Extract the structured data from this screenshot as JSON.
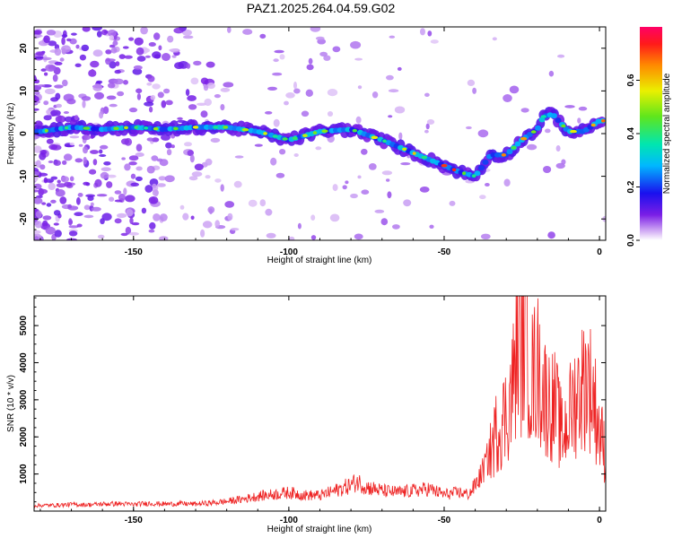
{
  "title": "PAZ1.2025.264.04.59.G02",
  "chart_data": [
    {
      "type": "heatmap",
      "name": "spectrogram",
      "xlabel": "Height of straight line (km)",
      "ylabel": "Frequency (Hz)",
      "xlim": [
        -182,
        2
      ],
      "ylim": [
        -25,
        25
      ],
      "xticks": [
        -150,
        -100,
        -50,
        0
      ],
      "xtick_labels": [
        "-150",
        "-100",
        "-50",
        "0"
      ],
      "yticks": [
        20,
        10,
        0,
        -10,
        -20
      ],
      "ytick_labels": [
        "20",
        "10",
        "0",
        "-10",
        "-20"
      ],
      "colorbar": {
        "label": "Normalized spectral amplitude",
        "range": [
          0,
          0.8
        ],
        "ticks": [
          0.0,
          0.2,
          0.4,
          0.6
        ],
        "tick_labels": [
          "0.0",
          "0.2",
          "0.4",
          "0.6"
        ]
      },
      "ridge": {
        "x": [
          -180,
          -170,
          -160,
          -150,
          -140,
          -130,
          -120,
          -110,
          -100,
          -90,
          -80,
          -70,
          -60,
          -50,
          -45,
          -40,
          -35,
          -30,
          -25,
          -20,
          -18,
          -15,
          -10,
          -5,
          0
        ],
        "y": [
          0.5,
          1.5,
          1.0,
          1.5,
          1.0,
          1.5,
          1.5,
          0.5,
          -1.5,
          0.5,
          1.0,
          -1.5,
          -4.5,
          -7.5,
          -9.0,
          -10.0,
          -5.0,
          -5.0,
          -1.5,
          1.0,
          4.0,
          4.5,
          0.5,
          0.5,
          3.0
        ]
      },
      "peak_amplitude": 0.8
    },
    {
      "type": "line",
      "name": "snr",
      "xlabel": "Height of straight line (km)",
      "ylabel": "SNR (10 * v/v)",
      "xlim": [
        -182,
        2
      ],
      "ylim": [
        0,
        5800
      ],
      "xticks": [
        -150,
        -100,
        -50,
        0
      ],
      "xtick_labels": [
        "-150",
        "-100",
        "-50",
        "0"
      ],
      "yticks": [
        1000,
        2000,
        3000,
        4000,
        5000
      ],
      "ytick_labels": [
        "1000",
        "2000",
        "3000",
        "4000",
        "5000"
      ],
      "series": [
        {
          "name": "SNR",
          "color": "#ee2222",
          "x": [
            -182,
            -175,
            -170,
            -165,
            -160,
            -155,
            -150,
            -145,
            -140,
            -135,
            -130,
            -125,
            -120,
            -115,
            -110,
            -105,
            -100,
            -95,
            -90,
            -85,
            -80,
            -78,
            -75,
            -70,
            -65,
            -60,
            -55,
            -50,
            -45,
            -42,
            -40,
            -38,
            -35,
            -33,
            -30,
            -28,
            -26,
            -25,
            -24,
            -22,
            -20,
            -18,
            -16,
            -14,
            -12,
            -10,
            -8,
            -6,
            -4,
            -2,
            0,
            2
          ],
          "y": [
            150,
            160,
            180,
            170,
            190,
            200,
            180,
            210,
            190,
            200,
            190,
            220,
            260,
            320,
            400,
            450,
            500,
            430,
            420,
            550,
            700,
            800,
            650,
            550,
            500,
            550,
            600,
            450,
            500,
            450,
            700,
            1000,
            1600,
            2200,
            2600,
            3300,
            4800,
            4200,
            5200,
            3500,
            3900,
            3200,
            2900,
            2800,
            2000,
            2500,
            3000,
            3300,
            3600,
            3100,
            2200,
            1500
          ]
        }
      ]
    }
  ]
}
